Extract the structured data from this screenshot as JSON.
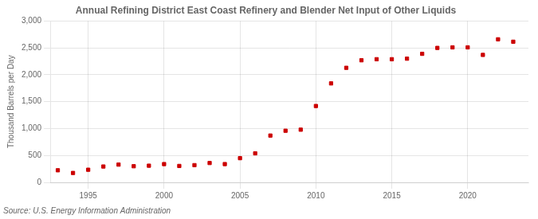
{
  "chart_data": {
    "type": "scatter",
    "title": "Annual Refining District East Coast Refinery and Blender Net Input of Other Liquids",
    "ylabel": "Thousand Barrels per Day",
    "source": "Source: U.S. Energy Information Administration",
    "x": [
      1993,
      1994,
      1995,
      1996,
      1997,
      1998,
      1999,
      2000,
      2001,
      2002,
      2003,
      2004,
      2005,
      2006,
      2007,
      2008,
      2009,
      2010,
      2011,
      2012,
      2013,
      2014,
      2015,
      2016,
      2017,
      2018,
      2019,
      2020,
      2021,
      2022,
      2023
    ],
    "values": [
      225,
      175,
      235,
      295,
      330,
      300,
      310,
      340,
      305,
      320,
      360,
      340,
      450,
      540,
      870,
      960,
      980,
      1420,
      1840,
      2130,
      2270,
      2290,
      2290,
      2300,
      2390,
      2500,
      2510,
      2510,
      2370,
      2660,
      2615
    ],
    "color": "#cc0000",
    "marker": "square",
    "xlim": [
      1992.5,
      2024
    ],
    "xticks": [
      1995,
      2000,
      2005,
      2010,
      2015,
      2020
    ],
    "ylim": [
      0,
      3000
    ],
    "yticks": [
      0,
      500,
      {
        "value": 1000,
        "label": "1,000"
      },
      {
        "value": 1500,
        "label": "1,500"
      },
      {
        "value": 2000,
        "label": "2,000"
      },
      {
        "value": 2500,
        "label": "2,500"
      },
      {
        "value": 3000,
        "label": "3,000"
      }
    ],
    "grid": true
  }
}
